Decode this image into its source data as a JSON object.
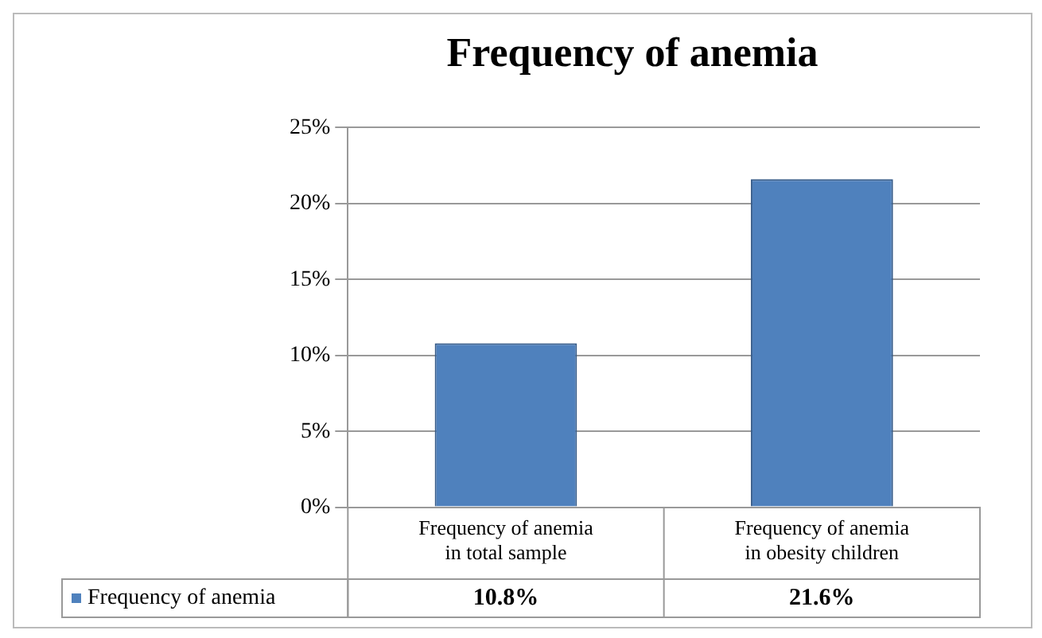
{
  "chart_data": {
    "type": "bar",
    "title": "Frequency of anemia",
    "categories": [
      "Frequency of anemia in total sample",
      "Frequency of anemia in obesity children"
    ],
    "series": [
      {
        "name": "Frequency of anemia",
        "color": "#4f81bd",
        "values": [
          10.8,
          21.6
        ],
        "value_labels": [
          "10.8%",
          "21.6%"
        ]
      }
    ],
    "ylim": [
      0,
      25
    ],
    "yticks": [
      {
        "value": 0,
        "label": "0%"
      },
      {
        "value": 5,
        "label": "5%"
      },
      {
        "value": 10,
        "label": "10%"
      },
      {
        "value": 15,
        "label": "15%"
      },
      {
        "value": 20,
        "label": "20%"
      },
      {
        "value": 25,
        "label": "25%"
      }
    ],
    "grid": "y",
    "legend": "bottom"
  }
}
